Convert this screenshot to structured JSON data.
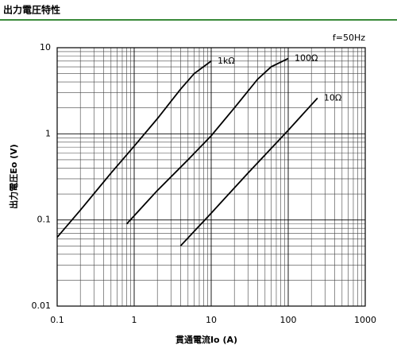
{
  "header": "出力電圧特性",
  "chart_data": {
    "type": "line",
    "xlabel": "貫通電流Io (A)",
    "ylabel": "出力電圧Eo (V)",
    "annotation": "f=50Hz",
    "xscale": "log",
    "yscale": "log",
    "grid": true,
    "color": "#000000",
    "xlim": [
      0.1,
      1000
    ],
    "xticks": [
      0.1,
      1,
      10,
      100,
      1000
    ],
    "ylim": [
      0.01,
      10
    ],
    "yticks": [
      0.01,
      0.1,
      1,
      10
    ],
    "series": [
      {
        "name": "1kΩ",
        "color": "#000000",
        "x": [
          0.1,
          0.2,
          0.5,
          1,
          2,
          4,
          6,
          10
        ],
        "values": [
          0.063,
          0.13,
          0.35,
          0.72,
          1.5,
          3.3,
          5,
          7
        ]
      },
      {
        "name": "100Ω",
        "color": "#000000",
        "x": [
          0.8,
          2,
          5,
          10,
          20,
          40,
          60,
          100
        ],
        "values": [
          0.09,
          0.22,
          0.5,
          0.95,
          2,
          4.3,
          6,
          7.5
        ]
      },
      {
        "name": "10Ω",
        "color": "#000000",
        "x": [
          4,
          10,
          30,
          100,
          240
        ],
        "values": [
          0.05,
          0.12,
          0.35,
          1.1,
          2.6
        ]
      }
    ]
  }
}
